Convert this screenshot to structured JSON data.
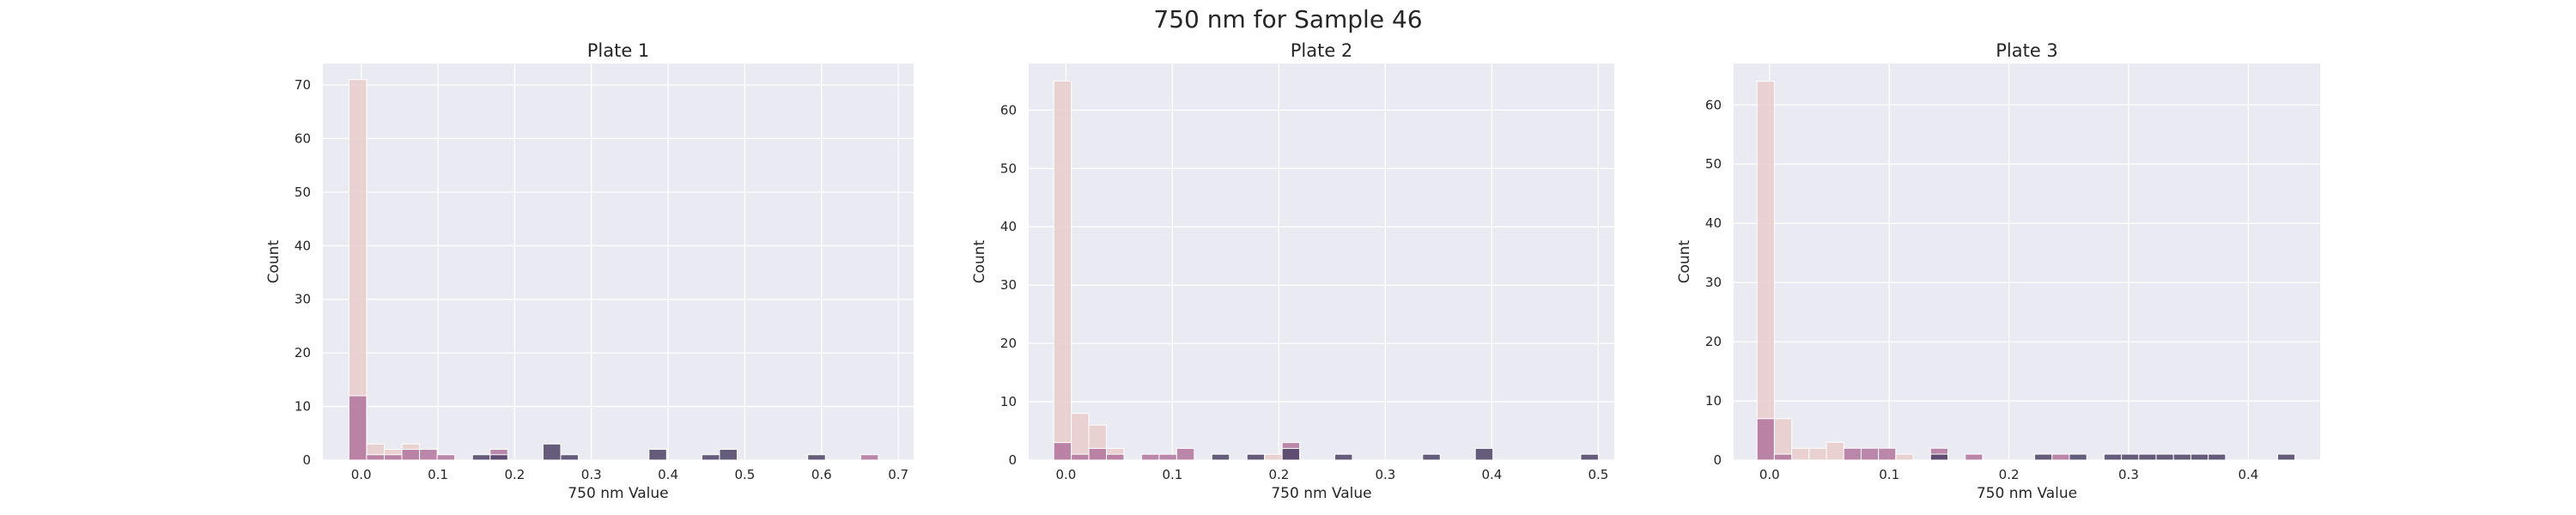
{
  "figure": {
    "title": "750 nm for Sample 46"
  },
  "colors": {
    "background": "#ffffff",
    "plot_background": "#eaeaf2",
    "grid": "#ffffff",
    "text": "#262626",
    "series": [
      "#e9cccb",
      "#b2769f",
      "#4d4366"
    ]
  },
  "chart_data": [
    {
      "type": "bar",
      "title": "Plate 1",
      "xlabel": "750 nm Value",
      "ylabel": "Count",
      "xlim": [
        -0.05,
        0.72
      ],
      "ylim": [
        0,
        74
      ],
      "xticks": [
        0.0,
        0.1,
        0.2,
        0.3,
        0.4,
        0.5,
        0.6,
        0.7
      ],
      "xtick_labels": [
        "0.0",
        "0.1",
        "0.2",
        "0.3",
        "0.4",
        "0.5",
        "0.6",
        "0.7"
      ],
      "yticks": [
        0,
        10,
        20,
        30,
        40,
        50,
        60,
        70
      ],
      "ytick_labels": [
        "0",
        "10",
        "20",
        "30",
        "40",
        "50",
        "60",
        "70"
      ],
      "bin_width": 0.023,
      "grid": true,
      "bars": [
        {
          "x": -0.016,
          "count": 71,
          "series": 0
        },
        {
          "x": 0.007,
          "count": 3,
          "series": 0
        },
        {
          "x": 0.03,
          "count": 2,
          "series": 0
        },
        {
          "x": 0.053,
          "count": 3,
          "series": 0
        },
        {
          "x": -0.016,
          "count": 12,
          "series": 1
        },
        {
          "x": 0.007,
          "count": 1,
          "series": 1
        },
        {
          "x": 0.03,
          "count": 1,
          "series": 1
        },
        {
          "x": 0.053,
          "count": 2,
          "series": 1
        },
        {
          "x": 0.076,
          "count": 2,
          "series": 1
        },
        {
          "x": 0.099,
          "count": 1,
          "series": 1
        },
        {
          "x": 0.168,
          "count": 2,
          "series": 1
        },
        {
          "x": 0.145,
          "count": 1,
          "series": 2
        },
        {
          "x": 0.168,
          "count": 1,
          "series": 2
        },
        {
          "x": 0.237,
          "count": 3,
          "series": 2
        },
        {
          "x": 0.26,
          "count": 1,
          "series": 2
        },
        {
          "x": 0.375,
          "count": 2,
          "series": 2
        },
        {
          "x": 0.444,
          "count": 1,
          "series": 2
        },
        {
          "x": 0.467,
          "count": 2,
          "series": 2
        },
        {
          "x": 0.582,
          "count": 1,
          "series": 2
        },
        {
          "x": 0.651,
          "count": 1,
          "series": 1
        }
      ]
    },
    {
      "type": "bar",
      "title": "Plate 2",
      "xlabel": "750 nm Value",
      "ylabel": "Count",
      "xlim": [
        -0.035,
        0.515
      ],
      "ylim": [
        0,
        68
      ],
      "xticks": [
        0.0,
        0.1,
        0.2,
        0.3,
        0.4,
        0.5
      ],
      "xtick_labels": [
        "0.0",
        "0.1",
        "0.2",
        "0.3",
        "0.4",
        "0.5"
      ],
      "yticks": [
        0,
        10,
        20,
        30,
        40,
        50,
        60
      ],
      "ytick_labels": [
        "0",
        "10",
        "20",
        "30",
        "40",
        "50",
        "60"
      ],
      "bin_width": 0.0165,
      "grid": true,
      "bars": [
        {
          "x": -0.0115,
          "count": 65,
          "series": 0
        },
        {
          "x": 0.005,
          "count": 8,
          "series": 0
        },
        {
          "x": 0.0215,
          "count": 6,
          "series": 0
        },
        {
          "x": 0.038,
          "count": 2,
          "series": 0
        },
        {
          "x": -0.0115,
          "count": 3,
          "series": 1
        },
        {
          "x": 0.005,
          "count": 1,
          "series": 1
        },
        {
          "x": 0.0215,
          "count": 2,
          "series": 1
        },
        {
          "x": 0.038,
          "count": 1,
          "series": 1
        },
        {
          "x": 0.071,
          "count": 1,
          "series": 1
        },
        {
          "x": 0.0875,
          "count": 1,
          "series": 1
        },
        {
          "x": 0.104,
          "count": 2,
          "series": 1
        },
        {
          "x": 0.137,
          "count": 1,
          "series": 2
        },
        {
          "x": 0.17,
          "count": 1,
          "series": 2
        },
        {
          "x": 0.1865,
          "count": 1,
          "series": 0
        },
        {
          "x": 0.203,
          "count": 3,
          "series": 1
        },
        {
          "x": 0.203,
          "count": 2,
          "series": 2
        },
        {
          "x": 0.2525,
          "count": 1,
          "series": 2
        },
        {
          "x": 0.335,
          "count": 1,
          "series": 2
        },
        {
          "x": 0.3845,
          "count": 2,
          "series": 2
        },
        {
          "x": 0.4835,
          "count": 1,
          "series": 2
        }
      ]
    },
    {
      "type": "bar",
      "title": "Plate 3",
      "xlabel": "750 nm Value",
      "ylabel": "Count",
      "xlim": [
        -0.03,
        0.46
      ],
      "ylim": [
        0,
        67
      ],
      "xticks": [
        0.0,
        0.1,
        0.2,
        0.3,
        0.4
      ],
      "xtick_labels": [
        "0.0",
        "0.1",
        "0.2",
        "0.3",
        "0.4"
      ],
      "yticks": [
        0,
        10,
        20,
        30,
        40,
        50,
        60
      ],
      "ytick_labels": [
        "0",
        "10",
        "20",
        "30",
        "40",
        "50",
        "60"
      ],
      "bin_width": 0.0145,
      "grid": true,
      "bars": [
        {
          "x": -0.0105,
          "count": 64,
          "series": 0
        },
        {
          "x": 0.004,
          "count": 7,
          "series": 0
        },
        {
          "x": 0.0185,
          "count": 2,
          "series": 0
        },
        {
          "x": 0.033,
          "count": 2,
          "series": 0
        },
        {
          "x": 0.0475,
          "count": 3,
          "series": 0
        },
        {
          "x": -0.0105,
          "count": 7,
          "series": 1
        },
        {
          "x": 0.004,
          "count": 1,
          "series": 1
        },
        {
          "x": 0.062,
          "count": 2,
          "series": 1
        },
        {
          "x": 0.0765,
          "count": 2,
          "series": 1
        },
        {
          "x": 0.091,
          "count": 2,
          "series": 1
        },
        {
          "x": 0.1055,
          "count": 1,
          "series": 0
        },
        {
          "x": 0.1345,
          "count": 2,
          "series": 1
        },
        {
          "x": 0.1345,
          "count": 1,
          "series": 2
        },
        {
          "x": 0.1635,
          "count": 1,
          "series": 1
        },
        {
          "x": 0.2215,
          "count": 1,
          "series": 2
        },
        {
          "x": 0.236,
          "count": 1,
          "series": 1
        },
        {
          "x": 0.2505,
          "count": 1,
          "series": 2
        },
        {
          "x": 0.2795,
          "count": 1,
          "series": 2
        },
        {
          "x": 0.294,
          "count": 1,
          "series": 2
        },
        {
          "x": 0.3085,
          "count": 1,
          "series": 2
        },
        {
          "x": 0.323,
          "count": 1,
          "series": 2
        },
        {
          "x": 0.3375,
          "count": 1,
          "series": 2
        },
        {
          "x": 0.352,
          "count": 1,
          "series": 2
        },
        {
          "x": 0.3665,
          "count": 1,
          "series": 2
        },
        {
          "x": 0.4245,
          "count": 1,
          "series": 2
        }
      ]
    }
  ]
}
